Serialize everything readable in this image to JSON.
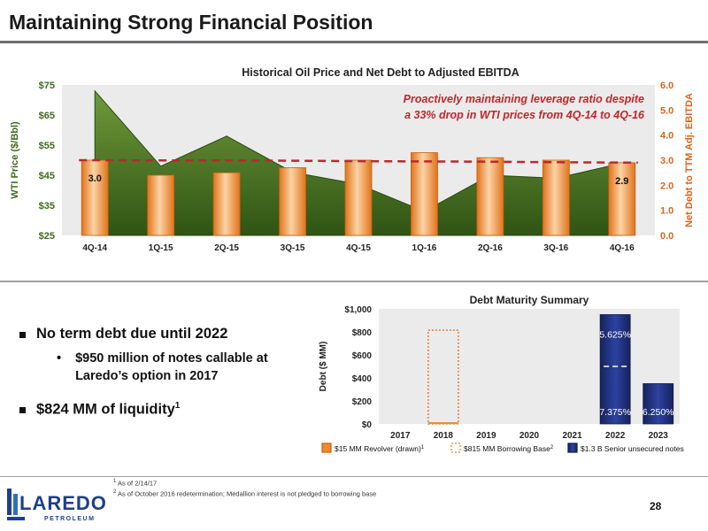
{
  "page": {
    "title": "Maintaining Strong Financial Position",
    "page_number": "28",
    "footnotes": [
      {
        "mark": "1",
        "text": "As of 2/14/17"
      },
      {
        "mark": "2",
        "text": "As of October 2016 redetermination; Medallion interest is not pledged to borrowing base"
      }
    ],
    "logo": {
      "name": "LAREDO",
      "sub": "PETROLEUM"
    }
  },
  "bullets": {
    "b1": "No term debt due until 2022",
    "b1_sub": "$950 million of notes callable at Laredo’s option in 2017",
    "b2": "$824 MM of liquidity",
    "b2_sup": "1"
  },
  "colors": {
    "wti_area": "#3f6a1c",
    "wti_area_light": "#6f9a3a",
    "leverage_bar": "#f08a2a",
    "leverage_bar_light": "#fcd3a6",
    "trend_line": "#c0262d",
    "right_axis": "#d9641e",
    "navy": "#1f2f78",
    "borrowing_base_border": "#e8823a"
  },
  "chart_data": [
    {
      "type": "bar",
      "title": "Historical Oil Price and Net Debt to Adjusted EBITDA",
      "categories": [
        "4Q-14",
        "1Q-15",
        "2Q-15",
        "3Q-15",
        "4Q-15",
        "1Q-16",
        "2Q-16",
        "3Q-16",
        "4Q-16"
      ],
      "ylabel": "WTI Price ($/Bbl)",
      "y_ticks": [
        "$25",
        "$35",
        "$45",
        "$55",
        "$65",
        "$75"
      ],
      "ylim": [
        25,
        75
      ],
      "y2label": "Net Debt to TTM Adj. EBITDA",
      "y2_ticks": [
        "0.0",
        "1.0",
        "2.0",
        "3.0",
        "4.0",
        "5.0",
        "6.0"
      ],
      "y2lim": [
        0,
        6
      ],
      "series": [
        {
          "type": "area",
          "axis": "left",
          "values": [
            73,
            48,
            58,
            46,
            42,
            33,
            45,
            44,
            49
          ]
        },
        {
          "type": "bar",
          "axis": "right",
          "values": [
            3.0,
            2.4,
            2.5,
            2.7,
            3.0,
            3.3,
            3.1,
            3.0,
            2.9
          ]
        },
        {
          "type": "line",
          "axis": "right",
          "style": "dashed",
          "values": [
            3.0,
            2.99,
            2.99,
            2.98,
            2.96,
            2.95,
            2.94,
            2.92,
            2.9
          ]
        }
      ],
      "data_labels": [
        {
          "category": "4Q-14",
          "text": "3.0"
        },
        {
          "category": "4Q-16",
          "text": "2.9"
        }
      ],
      "annotation": [
        "Proactively maintaining leverage ratio despite",
        "a 33% drop in WTI prices from 4Q-14 to 4Q-16"
      ]
    },
    {
      "type": "bar",
      "title": "Debt Maturity Summary",
      "categories": [
        "2017",
        "2018",
        "2019",
        "2020",
        "2021",
        "2022",
        "2023"
      ],
      "ylabel": "Debt ($ MM)",
      "y_ticks": [
        "$0",
        "$200",
        "$400",
        "$600",
        "$800",
        "$1,000"
      ],
      "ylim": [
        0,
        1000
      ],
      "series": [
        {
          "name": "$15 MM Revolver (drawn)",
          "name_sup": "1",
          "values": [
            0,
            15,
            0,
            0,
            0,
            0,
            0
          ]
        },
        {
          "name": "$815 MM Borrowing Base",
          "name_sup": "2",
          "style": "dotted-outline",
          "values": [
            0,
            815,
            0,
            0,
            0,
            0,
            0
          ]
        },
        {
          "name": "$1.3 B Senior unsecured notes",
          "values": [
            0,
            0,
            0,
            0,
            0,
            950,
            350
          ]
        }
      ],
      "segments": {
        "category": "2022",
        "items": [
          {
            "label": "7.375%",
            "value": 500
          },
          {
            "label": "5.625%",
            "value": 450
          }
        ]
      },
      "bar_labels": [
        {
          "category": "2023",
          "text": "6.250%"
        }
      ]
    }
  ]
}
